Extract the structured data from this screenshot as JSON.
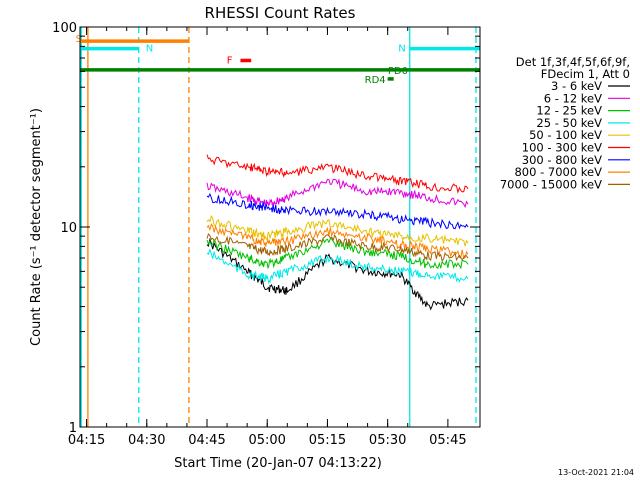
{
  "chart_data": {
    "type": "line",
    "title": "RHESSI Count Rates",
    "xlabel": "Start Time (20-Jan-07 04:13:22)",
    "ylabel": "Count Rate (s⁻¹ detector segment⁻¹)",
    "y_scale": "log",
    "ylim": [
      1,
      100
    ],
    "xlim": [
      "04:13:22",
      "05:53:00"
    ],
    "x_ticks": [
      "04:15",
      "04:30",
      "04:45",
      "05:00",
      "05:15",
      "05:30",
      "05:45"
    ],
    "y_ticks": [
      "1",
      "10",
      "100"
    ],
    "legend_header": [
      "Det 1f,3f,4f,5f,6f,9f,",
      "FDecim 1, Att 0"
    ],
    "legend_position": "right",
    "footer": "13-Oct-2021 21:04",
    "series": [
      {
        "name": "3 - 6 keV",
        "color": "#000000",
        "x": [
          "04:45",
          "04:55",
          "05:00",
          "05:05",
          "05:15",
          "05:25",
          "05:33",
          "05:40",
          "05:50"
        ],
        "values": [
          8.5,
          6.0,
          5.0,
          4.8,
          7.0,
          6.0,
          5.8,
          4.0,
          4.3
        ]
      },
      {
        "name": "6 - 12 keV",
        "color": "#e000e0",
        "x": [
          "04:45",
          "04:55",
          "05:00",
          "05:05",
          "05:15",
          "05:25",
          "05:33",
          "05:40",
          "05:50"
        ],
        "values": [
          16,
          14,
          13,
          14,
          17,
          15,
          15,
          14,
          13
        ]
      },
      {
        "name": "12 - 25 keV",
        "color": "#00c000",
        "x": [
          "04:45",
          "04:55",
          "05:00",
          "05:05",
          "05:15",
          "05:25",
          "05:33",
          "05:40",
          "05:50"
        ],
        "values": [
          8.5,
          7.0,
          6.5,
          7.0,
          8.5,
          7.5,
          7.2,
          6.5,
          6.5
        ]
      },
      {
        "name": "25 - 50 keV",
        "color": "#00e8e8",
        "x": [
          "04:45",
          "04:55",
          "05:00",
          "05:05",
          "05:15",
          "05:25",
          "05:33",
          "05:40",
          "05:50"
        ],
        "values": [
          7.5,
          5.8,
          5.5,
          6.0,
          7.0,
          6.3,
          6.0,
          5.8,
          5.5
        ]
      },
      {
        "name": "50 - 100 keV",
        "color": "#e8c000",
        "x": [
          "04:45",
          "04:55",
          "05:00",
          "05:05",
          "05:15",
          "05:25",
          "05:33",
          "05:40",
          "05:50"
        ],
        "values": [
          11,
          9.5,
          9.0,
          9.5,
          10.5,
          9.5,
          9.0,
          8.8,
          8.3
        ]
      },
      {
        "name": "100 - 300 keV",
        "color": "#ff0000",
        "x": [
          "04:45",
          "04:55",
          "05:00",
          "05:05",
          "05:15",
          "05:25",
          "05:33",
          "05:40",
          "05:50"
        ],
        "values": [
          22,
          20,
          19,
          18.5,
          20,
          18,
          17,
          16,
          15.5
        ]
      },
      {
        "name": "300 - 800 keV",
        "color": "#0000ff",
        "x": [
          "04:45",
          "04:55",
          "05:00",
          "05:05",
          "05:15",
          "05:25",
          "05:33",
          "05:40",
          "05:50"
        ],
        "values": [
          14,
          13,
          12.5,
          12,
          12,
          11.5,
          11,
          10.5,
          10
        ]
      },
      {
        "name": "800 - 7000 keV",
        "color": "#ff8000",
        "x": [
          "04:45",
          "04:55",
          "05:00",
          "05:05",
          "05:15",
          "05:25",
          "05:33",
          "05:40",
          "05:50"
        ],
        "values": [
          10,
          8.8,
          8.3,
          8.5,
          9.5,
          8.8,
          8.2,
          7.8,
          7.3
        ]
      },
      {
        "name": "7000 - 15000 keV",
        "color": "#a06000",
        "x": [
          "04:45",
          "04:55",
          "05:00",
          "05:05",
          "05:15",
          "05:25",
          "05:33",
          "05:40",
          "05:50"
        ],
        "values": [
          9.0,
          8.0,
          7.5,
          7.8,
          8.8,
          8.0,
          7.8,
          7.2,
          7.0
        ]
      }
    ],
    "annotations": [
      {
        "label": "S",
        "color": "#ff8000",
        "x_start": "04:13:22",
        "x_end": "04:40:30",
        "level": 85
      },
      {
        "label": "N",
        "color": "#00e8e8",
        "x_start": "04:13:22",
        "x_end": "04:28:00",
        "level": 78
      },
      {
        "label": "N",
        "color": "#00e8e8",
        "x_start": "05:35:30",
        "x_end": "05:53:00",
        "level": 78
      },
      {
        "label": "F",
        "color": "#ff0000",
        "x_start": "04:53:20",
        "x_end": "04:56:00",
        "level": 68
      },
      {
        "label": "PD0",
        "color": "#008000",
        "x_start": "04:13:22",
        "x_end": "05:53:00",
        "level": 61
      },
      {
        "label": "RD4",
        "color": "#008000",
        "x_start": "05:30:00",
        "x_end": "05:31:30",
        "level": 55
      }
    ],
    "vertical_markers": [
      {
        "color": "#00e8e8",
        "x": "04:13:40",
        "style": "solid"
      },
      {
        "color": "#ff8000",
        "x": "04:15:20",
        "style": "solid"
      },
      {
        "color": "#00e8e8",
        "x": "04:28:00",
        "style": "dashed"
      },
      {
        "color": "#ff8000",
        "x": "04:40:30",
        "style": "dashed"
      },
      {
        "color": "#00e8e8",
        "x": "05:35:30",
        "style": "solid"
      },
      {
        "color": "#00e8e8",
        "x": "05:52:00",
        "style": "dashed"
      }
    ]
  }
}
